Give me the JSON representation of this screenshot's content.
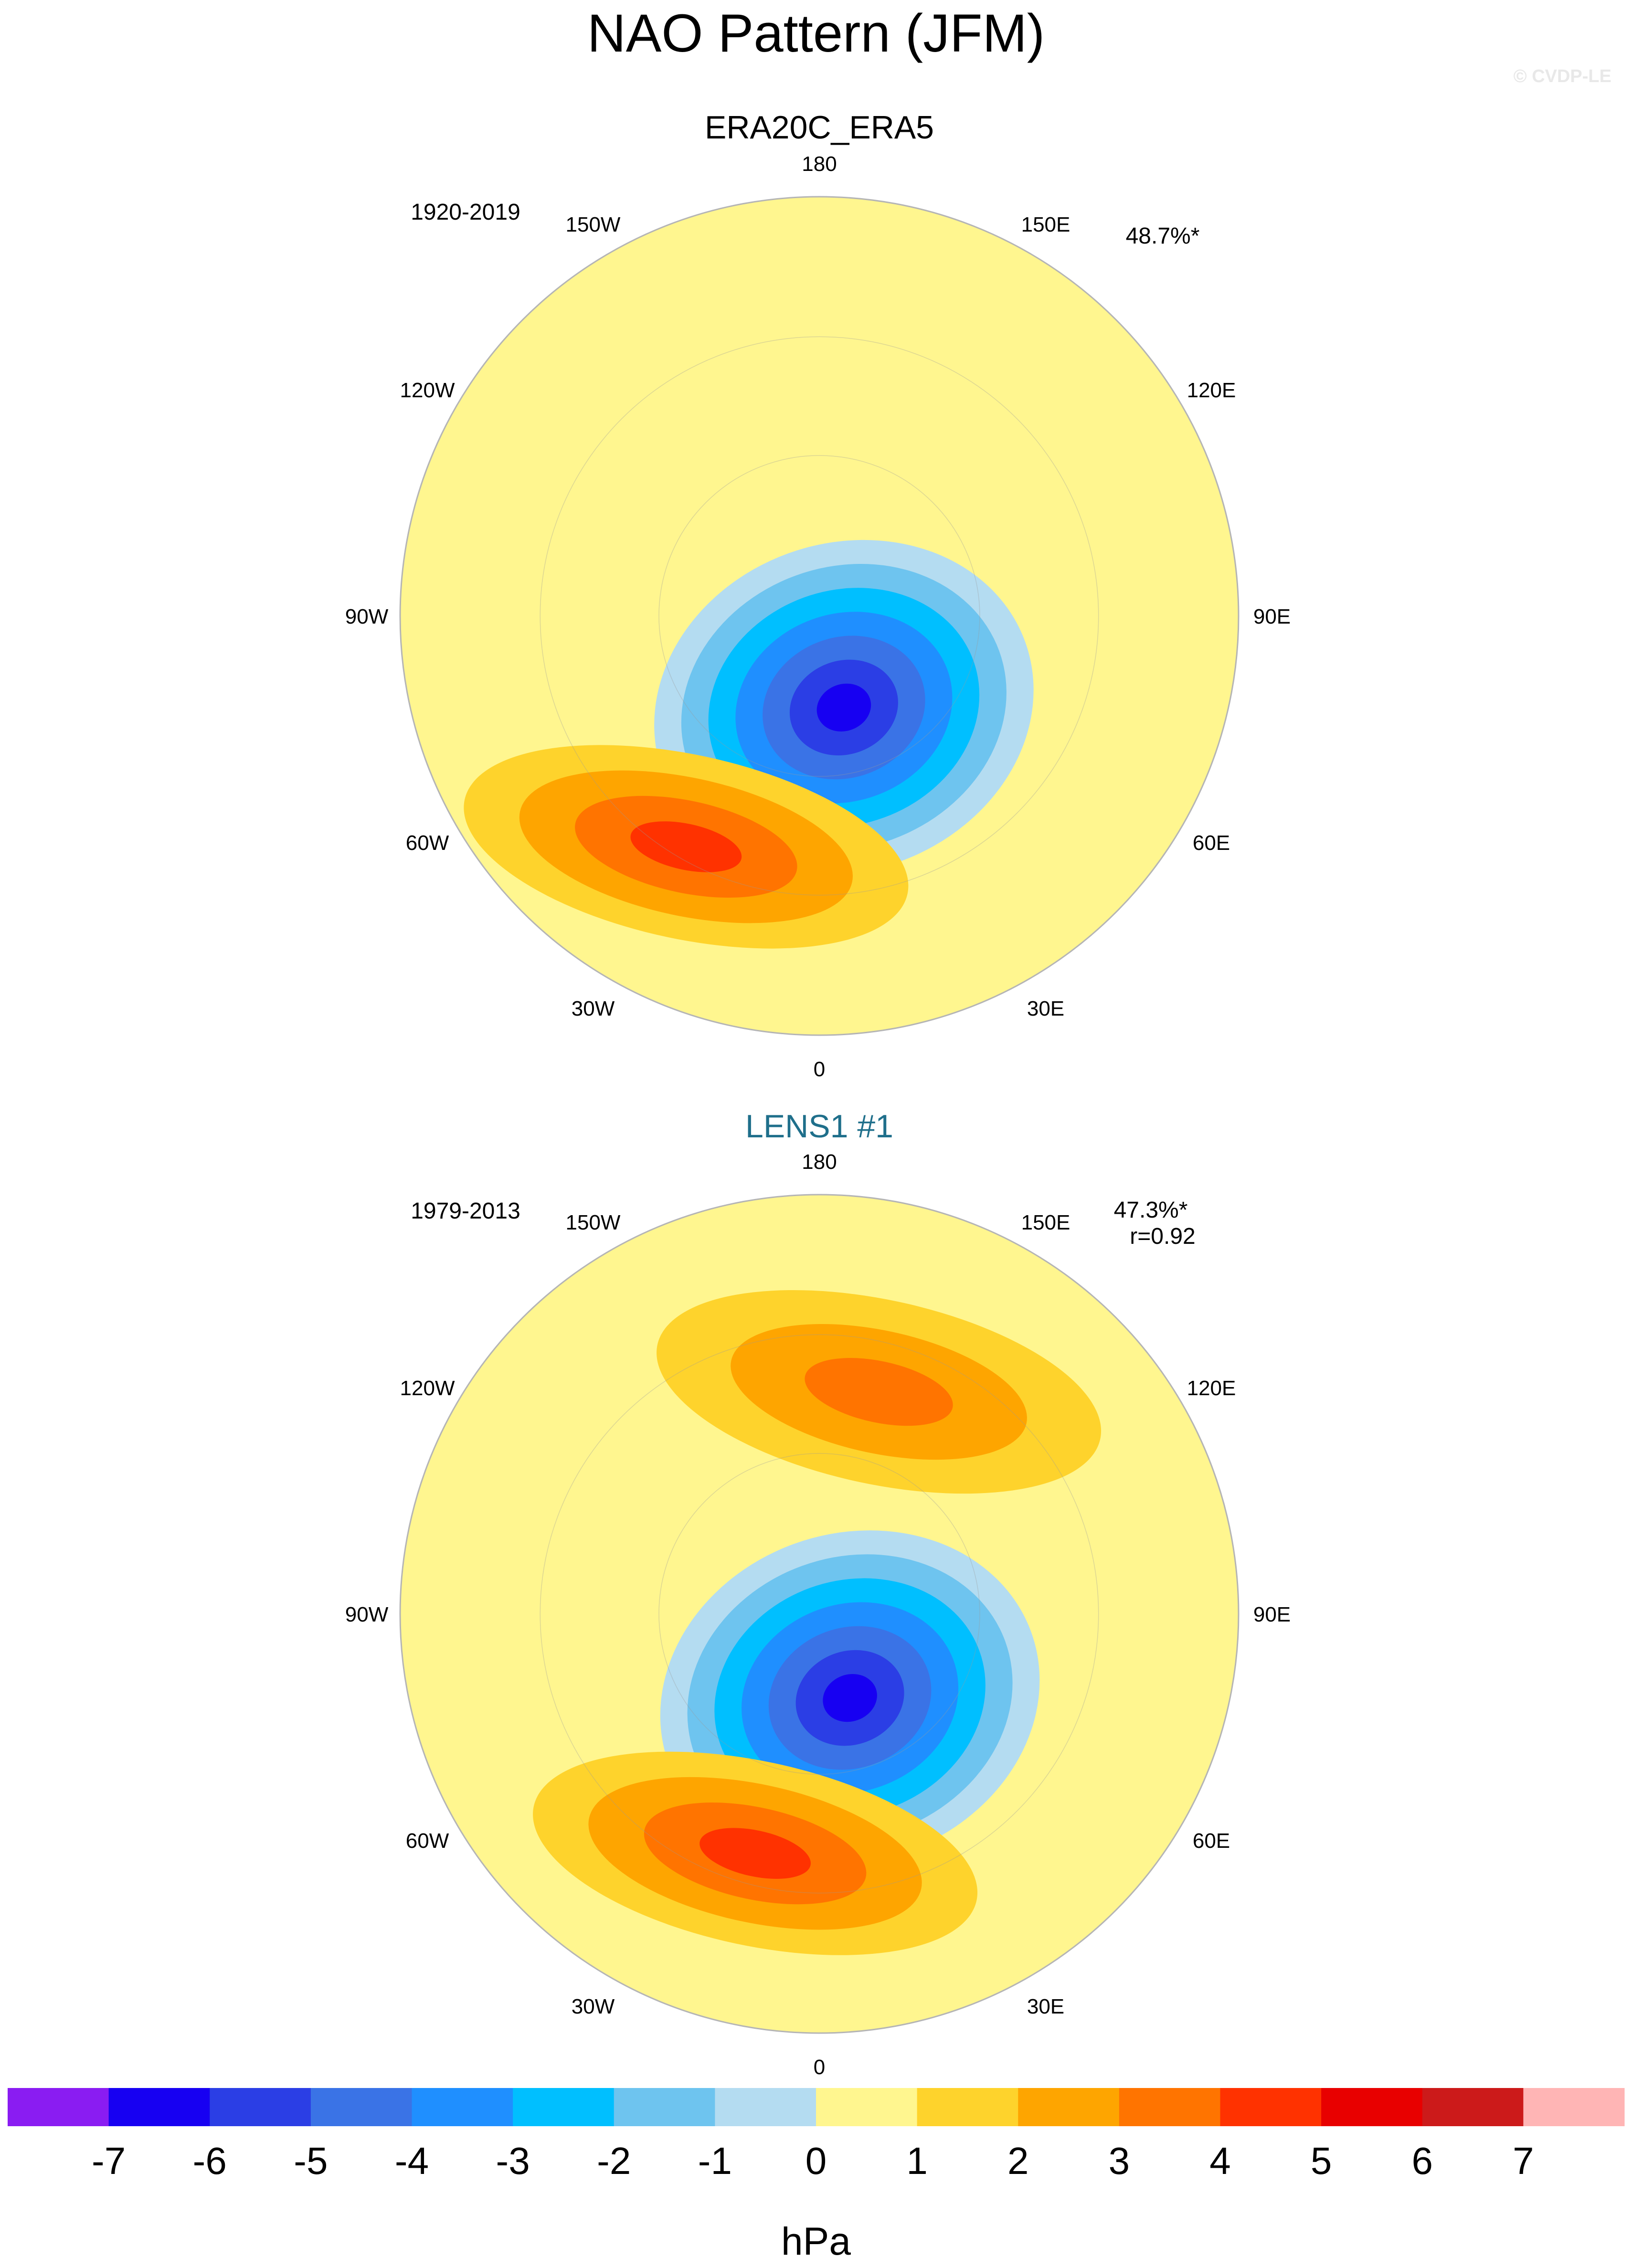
{
  "figure": {
    "title": "NAO Pattern (JFM)",
    "watermark": "© CVDP-LE"
  },
  "chart_data": [
    {
      "type": "heatmap",
      "projection": "north polar stereographic",
      "title": "ERA20C_ERA5",
      "period": "1920-2019",
      "pct_variance": "48.7%*",
      "pattern_corr": "",
      "longitude_labels": [
        "180",
        "150E",
        "120E",
        "90E",
        "60E",
        "30E",
        "0",
        "30W",
        "60W",
        "90W",
        "120W",
        "150W"
      ],
      "pattern": {
        "lows": [
          {
            "lon": 15,
            "lat": 72,
            "value": -6.5
          }
        ],
        "highs": [
          {
            "lon": -30,
            "lat": 42,
            "value": 3.5
          }
        ]
      }
    },
    {
      "type": "heatmap",
      "projection": "north polar stereographic",
      "title": "LENS1 #1",
      "title_color": "#1f6f8b",
      "period": "1979-2013",
      "pct_variance": "47.3%*",
      "pattern_corr": "r=0.92",
      "longitude_labels": [
        "180",
        "150E",
        "120E",
        "90E",
        "60E",
        "30E",
        "0",
        "30W",
        "60W",
        "90W",
        "120W",
        "150W"
      ],
      "pattern": {
        "lows": [
          {
            "lon": 20,
            "lat": 73,
            "value": -6.2
          }
        ],
        "highs": [
          {
            "lon": -15,
            "lat": 45,
            "value": 3.3
          },
          {
            "lon": 165,
            "lat": 48,
            "value": 2.5
          }
        ]
      }
    }
  ],
  "colorbar": {
    "label": "hPa",
    "ticks": [
      "-7",
      "-6",
      "-5",
      "-4",
      "-3",
      "-2",
      "-1",
      "0",
      "1",
      "2",
      "3",
      "4",
      "5",
      "6",
      "7"
    ],
    "colors": [
      "#8a1cf2",
      "#1700f2",
      "#2b3ee5",
      "#3a73e6",
      "#1f8fff",
      "#00bfff",
      "#6ec4ef",
      "#b4dcf1",
      "#fff68f",
      "#fed32c",
      "#fea500",
      "#ff7400",
      "#ff3200",
      "#e80000",
      "#cc1a1a",
      "#ffb5b5"
    ]
  },
  "levels": [
    -7,
    -6,
    -5,
    -4,
    -3,
    -2,
    -1,
    0,
    1,
    2,
    3,
    4,
    5,
    6,
    7
  ]
}
